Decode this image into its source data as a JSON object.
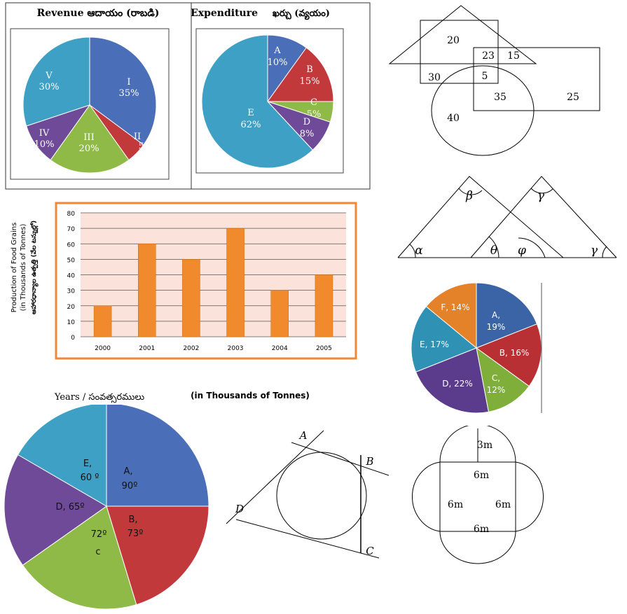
{
  "revenue": {
    "title": "Revenue ఆదాయం (రాబడి)",
    "chart_data": {
      "type": "pie",
      "title": "Revenue ఆదాయం (రాబడి)",
      "slices": [
        {
          "label": "I",
          "value": 35,
          "pct": "35%",
          "color": "#4a6fb8"
        },
        {
          "label": "II",
          "value": 5,
          "pct": "5%",
          "color": "#c2393c"
        },
        {
          "label": "III",
          "value": 20,
          "pct": "20%",
          "color": "#8fba48"
        },
        {
          "label": "IV",
          "value": 10,
          "pct": "10%",
          "color": "#6f4a98"
        },
        {
          "label": "V",
          "value": 30,
          "pct": "30%",
          "color": "#3ea0c4"
        }
      ]
    }
  },
  "expenditure": {
    "title": "Expenditure",
    "title_te": "ఖర్చు (వ్యయం)",
    "chart_data": {
      "type": "pie",
      "title": "Expenditure ఖర్చు (వ్యయం)",
      "slices": [
        {
          "label": "A",
          "value": 10,
          "pct": "10%",
          "color": "#4a6fb8"
        },
        {
          "label": "B",
          "value": 15,
          "pct": "15%",
          "color": "#c2393c"
        },
        {
          "label": "C",
          "value": 5,
          "pct": "5%",
          "color": "#8fba48"
        },
        {
          "label": "D",
          "value": 8,
          "pct": "8%",
          "color": "#6f4a98"
        },
        {
          "label": "E",
          "value": 62,
          "pct": "62%",
          "color": "#3ea0c4"
        }
      ]
    }
  },
  "venn": {
    "numbers": [
      "20",
      "23",
      "15",
      "30",
      "5",
      "35",
      "25",
      "40"
    ]
  },
  "food_grains": {
    "ylabel_en1": "Production of Food Grains",
    "ylabel_en2": "(in Thousands of Tonnes)",
    "ylabel_te": "ఆహారధాన్యాల ఉత్పత్తి (వేల టన్నుల్లో)",
    "xlabel": "Years / సంవత్సరములు",
    "unit_note": "(in Thousands of Tonnes)",
    "chart_data": {
      "type": "bar",
      "categories": [
        "2000",
        "2001",
        "2002",
        "2003",
        "2004",
        "2005"
      ],
      "values": [
        20,
        60,
        50,
        70,
        30,
        40
      ],
      "ylim": [
        0,
        80
      ],
      "yticks": [
        "0",
        "10",
        "20",
        "30",
        "40",
        "50",
        "60",
        "70",
        "80"
      ],
      "bar_color": "#f08a2c",
      "plot_bg": "#fbe3dc",
      "grid": true
    }
  },
  "angles": {
    "symbols": [
      "β",
      "γ",
      "α",
      "θ",
      "φ",
      "γ"
    ]
  },
  "pie_af": {
    "chart_data": {
      "type": "pie",
      "slices": [
        {
          "label": "A,",
          "pct": "19%",
          "value": 19,
          "color": "#3b64a6"
        },
        {
          "label": "B,",
          "pct": "16%",
          "value": 16,
          "color": "#b83034"
        },
        {
          "label": "C,",
          "pct": "12%",
          "value": 12,
          "color": "#7fae3a"
        },
        {
          "label": "D,",
          "pct": "22%",
          "value": 22,
          "color": "#5b3b8c"
        },
        {
          "label": "E,",
          "pct": "17%",
          "value": 17,
          "color": "#2f91b3"
        },
        {
          "label": "F,",
          "pct": "14%",
          "value": 14,
          "color": "#e4822a"
        }
      ]
    }
  },
  "pie_degrees": {
    "chart_data": {
      "type": "pie",
      "slices": [
        {
          "label": "A,",
          "deg": "90º",
          "value": 90,
          "color": "#4a6fb8"
        },
        {
          "label": "B,",
          "deg": "73º",
          "value": 73,
          "color": "#c2393c"
        },
        {
          "label": "c",
          "deg": "72º",
          "value": 72,
          "color": "#8fba48"
        },
        {
          "label": "D,",
          "deg": "65º",
          "value": 65,
          "color": "#6f4a98"
        },
        {
          "label": "E,",
          "deg": "60 º",
          "value": 60,
          "color": "#3ea0c4"
        }
      ]
    }
  },
  "tangent": {
    "labels": [
      "A",
      "B",
      "C",
      "D"
    ]
  },
  "square_semicircles": {
    "labels": [
      "3m",
      "6m",
      "6m",
      "6m",
      "6m"
    ]
  }
}
